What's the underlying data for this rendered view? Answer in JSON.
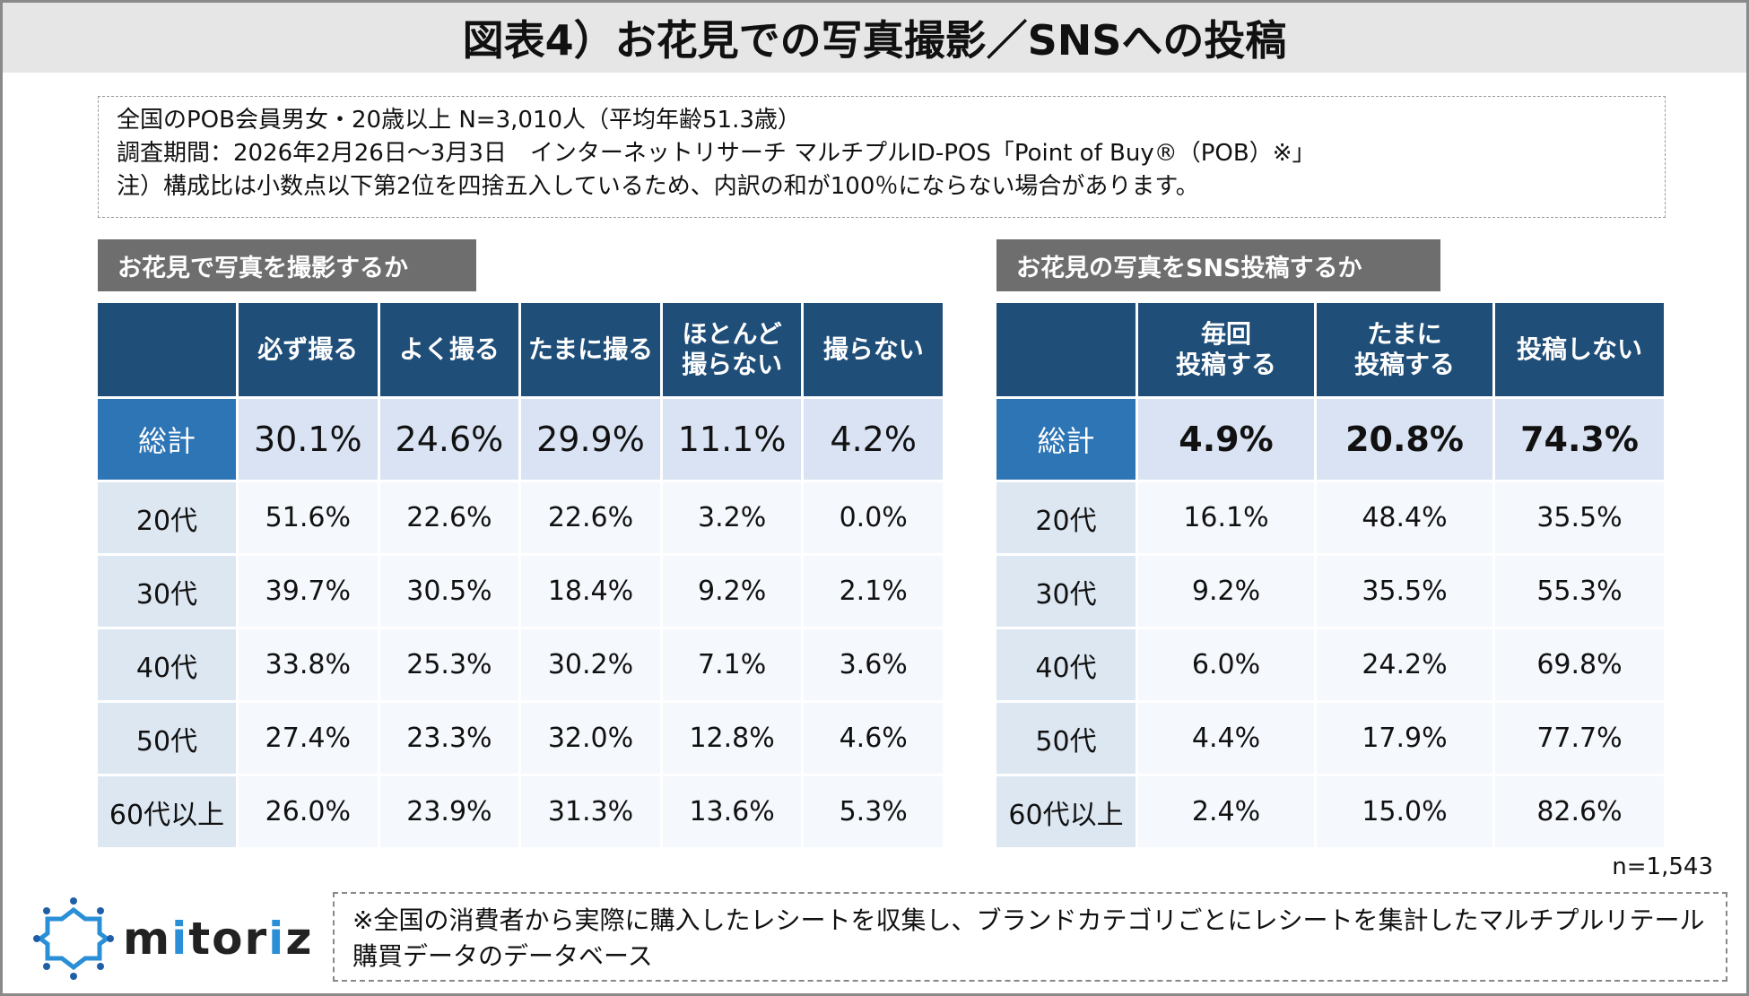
{
  "title": "図表4）お花見での写真撮影／SNSへの投稿",
  "notes": [
    "全国のPOB会員男女・20歳以上 N=3,010人（平均年齢51.3歳）",
    "調査期間：2026年2月26日～3月3日　インターネットリサーチ マルチプルID-POS「Point of Buy®（POB）※」",
    "注）構成比は小数点以下第2位を四捨五入しているため、内訳の和が100％にならない場合があります。"
  ],
  "left": {
    "label": "お花見で写真を撮影するか",
    "columns": [
      "必ず撮る",
      "よく撮る",
      "たまに撮る",
      "ほとんど\n撮らない",
      "撮らない"
    ],
    "rows": [
      {
        "label": "総計",
        "values": [
          "30.1%",
          "24.6%",
          "29.9%",
          "11.1%",
          "4.2%"
        ]
      },
      {
        "label": "20代",
        "values": [
          "51.6%",
          "22.6%",
          "22.6%",
          "3.2%",
          "0.0%"
        ]
      },
      {
        "label": "30代",
        "values": [
          "39.7%",
          "30.5%",
          "18.4%",
          "9.2%",
          "2.1%"
        ]
      },
      {
        "label": "40代",
        "values": [
          "33.8%",
          "25.3%",
          "30.2%",
          "7.1%",
          "3.6%"
        ]
      },
      {
        "label": "50代",
        "values": [
          "27.4%",
          "23.3%",
          "32.0%",
          "12.8%",
          "4.6%"
        ]
      },
      {
        "label": "60代以上",
        "values": [
          "26.0%",
          "23.9%",
          "31.3%",
          "13.6%",
          "5.3%"
        ]
      }
    ]
  },
  "right": {
    "label": "お花見の写真をSNS投稿するか",
    "columns": [
      "毎回\n投稿する",
      "たまに\n投稿する",
      "投稿しない"
    ],
    "rows": [
      {
        "label": "総計",
        "values": [
          "4.9%",
          "20.8%",
          "74.3%"
        ]
      },
      {
        "label": "20代",
        "values": [
          "16.1%",
          "48.4%",
          "35.5%"
        ]
      },
      {
        "label": "30代",
        "values": [
          "9.2%",
          "35.5%",
          "55.3%"
        ]
      },
      {
        "label": "40代",
        "values": [
          "6.0%",
          "24.2%",
          "69.8%"
        ]
      },
      {
        "label": "50代",
        "values": [
          "4.4%",
          "17.9%",
          "77.7%"
        ]
      },
      {
        "label": "60代以上",
        "values": [
          "2.4%",
          "15.0%",
          "82.6%"
        ]
      }
    ],
    "n": "n=1,543"
  },
  "footer": "※全国の消費者から実際に購入したレシートを収集し、ブランドカテゴリごとにレシートを集計したマルチプルリテール購買データのデータベース",
  "logo": {
    "text": "mitoriz"
  },
  "colors": {
    "header": "#1f4e79",
    "total_label": "#2e75b6",
    "total_cells": "#dae3f3",
    "row_label": "#dde7f2",
    "cells": "#f5f8fc"
  }
}
